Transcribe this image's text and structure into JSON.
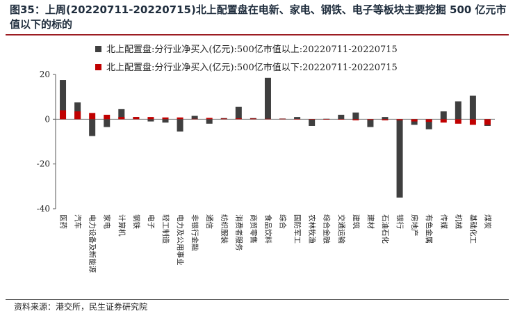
{
  "header": {
    "title": "图35：上周(20220711-20220715)北上配置盘在电新、家电、钢铁、电子等板块主要挖掘 500 亿元市值以下的标的"
  },
  "footer": {
    "source": "资料来源：港交所，民生证券研究院"
  },
  "chart_data": {
    "type": "bar",
    "title": "",
    "xlabel": "",
    "ylabel": "",
    "ylim": [
      -40,
      20
    ],
    "yticks": [
      20,
      0,
      -20,
      -40
    ],
    "grid": false,
    "legend_position": "top",
    "colors": {
      "series_0": "#3f3f3f",
      "series_1": "#c00000"
    },
    "categories": [
      "医药",
      "汽车",
      "电力设备及新能源",
      "家电",
      "计算机",
      "钢铁",
      "电子",
      "轻工制造",
      "电力及公用事业",
      "非银行金融",
      "通信",
      "纺织服装",
      "消费者服务",
      "商贸零售",
      "食品饮料",
      "综合",
      "国防军工",
      "农林牧渔",
      "综合金融",
      "交通运输",
      "建筑",
      "建材",
      "石油石化",
      "银行",
      "房地产",
      "有色金属",
      "传媒",
      "机械",
      "基础化工",
      "煤炭"
    ],
    "series": [
      {
        "name": "北上配置盘:分行业净买入(亿元):500亿市值以上:20220711-20220715",
        "values": [
          17.5,
          7.5,
          -7.5,
          -3.5,
          4.5,
          1.0,
          -1.0,
          -1.5,
          -5.5,
          1.5,
          -2.0,
          0.5,
          5.5,
          0.5,
          18.5,
          0.3,
          1.0,
          -3.0,
          0.2,
          2.0,
          3.0,
          -3.5,
          1.0,
          -35.0,
          -2.5,
          -4.5,
          3.5,
          8.0,
          10.5,
          -3.0
        ]
      },
      {
        "name": "北上配置盘:分行业净买入(亿元):500亿市值以下:20220711-20220715",
        "values": [
          4.0,
          3.5,
          2.8,
          2.0,
          1.0,
          1.0,
          1.0,
          0.8,
          0.8,
          0.2,
          0.6,
          0.3,
          0.4,
          0.3,
          0.2,
          0.2,
          0.1,
          0.0,
          -0.2,
          -0.2,
          -0.5,
          -0.3,
          -0.5,
          -0.5,
          -1.0,
          -1.2,
          -1.5,
          -2.0,
          -2.5,
          -2.5
        ]
      }
    ]
  }
}
